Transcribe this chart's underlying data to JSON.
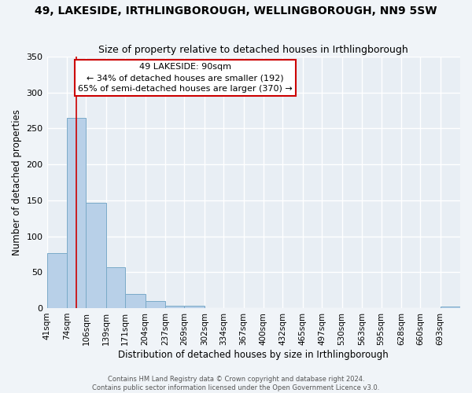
{
  "title": "49, LAKESIDE, IRTHLINGBOROUGH, WELLINGBOROUGH, NN9 5SW",
  "subtitle": "Size of property relative to detached houses in Irthlingborough",
  "xlabel": "Distribution of detached houses by size in Irthlingborough",
  "ylabel": "Number of detached properties",
  "bar_labels": [
    "41sqm",
    "74sqm",
    "106sqm",
    "139sqm",
    "171sqm",
    "204sqm",
    "237sqm",
    "269sqm",
    "302sqm",
    "334sqm",
    "367sqm",
    "400sqm",
    "432sqm",
    "465sqm",
    "497sqm",
    "530sqm",
    "563sqm",
    "595sqm",
    "628sqm",
    "660sqm",
    "693sqm"
  ],
  "bar_values": [
    77,
    265,
    147,
    57,
    20,
    10,
    3,
    3,
    0,
    0,
    0,
    0,
    0,
    0,
    0,
    0,
    0,
    0,
    0,
    0,
    2
  ],
  "bar_color": "#b8d0e8",
  "bar_edge_color": "#7aaac8",
  "background_color": "#e8eef4",
  "grid_color": "#ffffff",
  "annotation_box_text": "49 LAKESIDE: 90sqm\n← 34% of detached houses are smaller (192)\n65% of semi-detached houses are larger (370) →",
  "annotation_box_edge_color": "#cc0000",
  "property_line_x": 90,
  "ylim": [
    0,
    350
  ],
  "yticks": [
    0,
    50,
    100,
    150,
    200,
    250,
    300,
    350
  ],
  "footer_line1": "Contains HM Land Registry data © Crown copyright and database right 2024.",
  "footer_line2": "Contains public sector information licensed under the Open Government Licence v3.0.",
  "bin_edges": [
    41,
    74,
    106,
    139,
    171,
    204,
    237,
    269,
    302,
    334,
    367,
    400,
    432,
    465,
    497,
    530,
    563,
    595,
    628,
    660,
    693,
    726
  ]
}
